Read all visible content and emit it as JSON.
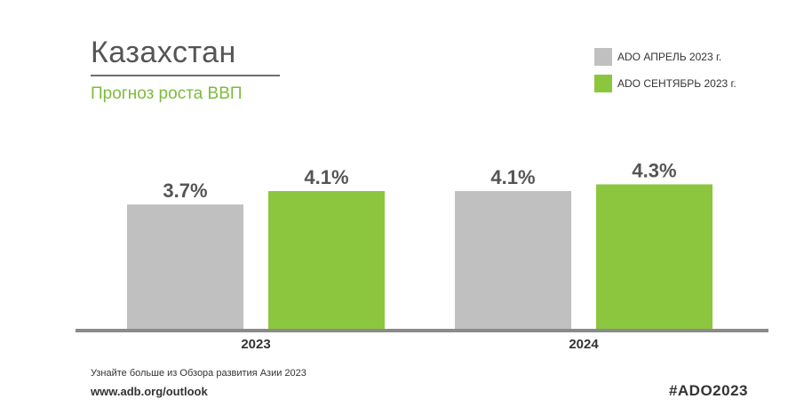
{
  "header": {
    "title": "Казахстан",
    "subtitle": "Прогноз роста ВВП"
  },
  "legend": [
    {
      "label": "ADO АПРЕЛЬ 2023 г.",
      "color": "#c0c0c0"
    },
    {
      "label": "ADO СЕНТЯБРЬ 2023 г.",
      "color": "#8cc63f"
    }
  ],
  "chart_data": {
    "type": "bar",
    "categories": [
      "2023",
      "2024"
    ],
    "series": [
      {
        "name": "ADO АПРЕЛЬ 2023 г.",
        "values": [
          3.7,
          4.1
        ],
        "labels": [
          "3.7%",
          "4.1%"
        ],
        "color": "#c0c0c0"
      },
      {
        "name": "ADO СЕНТЯБРЬ 2023 г.",
        "values": [
          4.1,
          4.3
        ],
        "labels": [
          "4.1%",
          "4.3%"
        ],
        "color": "#8cc63f"
      }
    ],
    "title": "Казахстан",
    "subtitle": "Прогноз роста ВВП",
    "xlabel": "",
    "ylabel": "",
    "ylim": [
      0,
      5
    ],
    "grid": false,
    "legend_position": "top-right"
  },
  "footer": {
    "line1": "Узнайте больше из Обзора развития Азии 2023",
    "line2": "www.adb.org/outlook",
    "hashtag": "#ADO2023"
  }
}
